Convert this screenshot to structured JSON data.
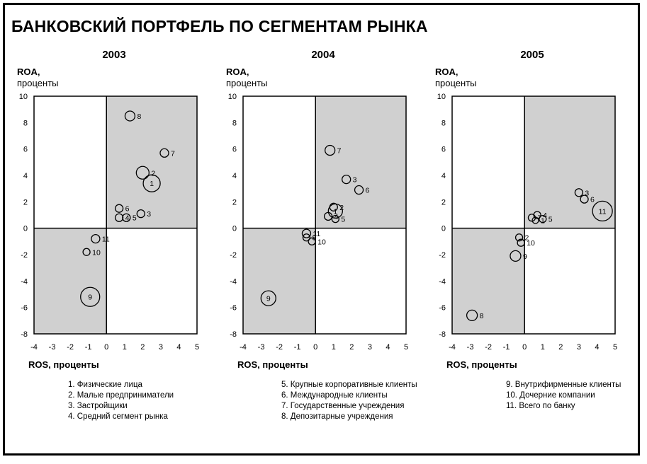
{
  "page": {
    "title": "БАНКОВСКИЙ ПОРТФЕЛЬ ПО СЕГМЕНТАМ РЫНКА"
  },
  "legend": {
    "col1": [
      "1. Физические лица",
      "2. Малые предприниматели",
      "3. Застройщики",
      "4. Средний сегмент рынка"
    ],
    "col2": [
      "5. Крупные корпоративные  клиенты",
      "6. Международные клиенты",
      "7. Государственные учреждения",
      "8. Депозитарные учреждения"
    ],
    "col3": [
      "9. Внутрифирменные клиенты",
      "10. Дочерние компании",
      "11. Всего по банку"
    ]
  },
  "chart_data": [
    {
      "type": "scatter",
      "title": "2003",
      "ylabel": [
        "ROA,",
        "проценты"
      ],
      "xlabel": "ROS, проценты",
      "xlim": [
        -4,
        5
      ],
      "ylim": [
        -8,
        10
      ],
      "xticks": [
        -4,
        -3,
        -2,
        -1,
        0,
        1,
        2,
        3,
        4,
        5
      ],
      "yticks": [
        10,
        8,
        6,
        4,
        2,
        0,
        -2,
        -4,
        -6,
        -8
      ],
      "shaded_quadrants": [
        "top-right",
        "bottom-left"
      ],
      "points": [
        {
          "label": "1",
          "x": 2.5,
          "y": 3.4,
          "size": 18
        },
        {
          "label": "2",
          "x": 2.0,
          "y": 4.2,
          "size": 12
        },
        {
          "label": "3",
          "x": 1.9,
          "y": 1.1,
          "size": 5
        },
        {
          "label": "4",
          "x": 0.7,
          "y": 0.8,
          "size": 5
        },
        {
          "label": "5",
          "x": 1.1,
          "y": 0.8,
          "size": 5
        },
        {
          "label": "6",
          "x": 0.7,
          "y": 1.5,
          "size": 5
        },
        {
          "label": "7",
          "x": 3.2,
          "y": 5.7,
          "size": 6
        },
        {
          "label": "8",
          "x": 1.3,
          "y": 8.5,
          "size": 8
        },
        {
          "label": "9",
          "x": -0.9,
          "y": -5.2,
          "size": 21
        },
        {
          "label": "10",
          "x": -1.1,
          "y": -1.8,
          "size": 4
        },
        {
          "label": "11",
          "x": -0.6,
          "y": -0.8,
          "size": 6
        }
      ]
    },
    {
      "type": "scatter",
      "title": "2004",
      "ylabel": [
        "ROA,",
        "проценты"
      ],
      "xlabel": "ROS, проценты",
      "xlim": [
        -4,
        5
      ],
      "ylim": [
        -8,
        10
      ],
      "xticks": [
        -4,
        -3,
        -2,
        -1,
        0,
        1,
        2,
        3,
        4,
        5
      ],
      "yticks": [
        10,
        8,
        6,
        4,
        2,
        0,
        -2,
        -4,
        -6,
        -8
      ],
      "shaded_quadrants": [
        "top-right",
        "bottom-left"
      ],
      "points": [
        {
          "label": "1",
          "x": 1.1,
          "y": 1.3,
          "size": 14
        },
        {
          "label": "2",
          "x": 1.0,
          "y": 1.6,
          "size": 5
        },
        {
          "label": "3",
          "x": 1.7,
          "y": 3.7,
          "size": 6
        },
        {
          "label": "4",
          "x": 0.7,
          "y": 0.9,
          "size": 5
        },
        {
          "label": "5",
          "x": 1.1,
          "y": 0.7,
          "size": 4
        },
        {
          "label": "6",
          "x": 2.4,
          "y": 2.9,
          "size": 6
        },
        {
          "label": "7",
          "x": 0.8,
          "y": 5.9,
          "size": 8
        },
        {
          "label": "8",
          "x": -0.5,
          "y": -0.7,
          "size": 4
        },
        {
          "label": "9",
          "x": -2.6,
          "y": -5.3,
          "size": 15
        },
        {
          "label": "10",
          "x": -0.2,
          "y": -1.0,
          "size": 4
        },
        {
          "label": "11",
          "x": -0.5,
          "y": -0.4,
          "size": 6
        }
      ]
    },
    {
      "type": "scatter",
      "title": "2005",
      "ylabel": [
        "ROA,",
        "проценты"
      ],
      "xlabel": "ROS, проценты",
      "xlim": [
        -4,
        5
      ],
      "ylim": [
        -8,
        10
      ],
      "xticks": [
        -4,
        -3,
        -2,
        -1,
        0,
        1,
        2,
        3,
        4,
        5
      ],
      "yticks": [
        10,
        8,
        6,
        4,
        2,
        0,
        -2,
        -4,
        -6,
        -8
      ],
      "shaded_quadrants": [
        "top-right",
        "bottom-left"
      ],
      "points": [
        {
          "label": "1",
          "x": 0.6,
          "y": 0.6,
          "size": 3
        },
        {
          "label": "2",
          "x": -0.3,
          "y": -0.7,
          "size": 4
        },
        {
          "label": "3",
          "x": 3.0,
          "y": 2.7,
          "size": 5
        },
        {
          "label": "4",
          "x": 0.7,
          "y": 1.0,
          "size": 4
        },
        {
          "label": "5",
          "x": 1.0,
          "y": 0.7,
          "size": 4
        },
        {
          "label": "6",
          "x": 3.3,
          "y": 2.2,
          "size": 5
        },
        {
          "label": "7",
          "x": 0.4,
          "y": 0.8,
          "size": 4
        },
        {
          "label": "8",
          "x": -2.9,
          "y": -6.6,
          "size": 9
        },
        {
          "label": "9",
          "x": -0.5,
          "y": -2.1,
          "size": 9
        },
        {
          "label": "10",
          "x": -0.2,
          "y": -1.1,
          "size": 4
        },
        {
          "label": "11",
          "x": 4.3,
          "y": 1.3,
          "size": 22
        }
      ]
    }
  ]
}
